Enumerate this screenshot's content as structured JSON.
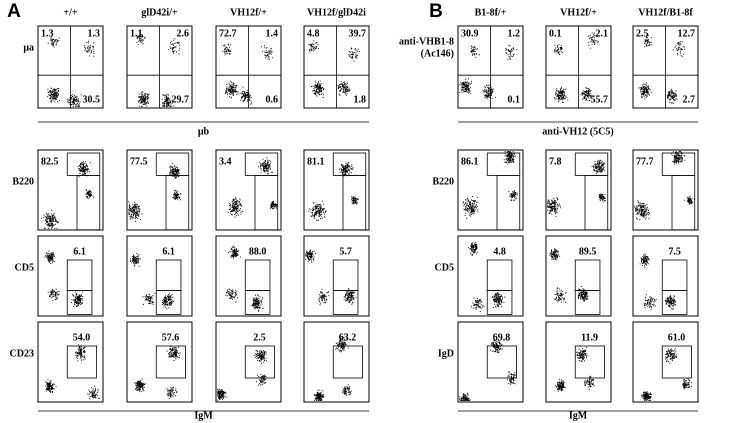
{
  "panels": [
    {
      "label": "A",
      "columns": [
        "+/+",
        "glD42i/+",
        "VH12f/+",
        "VH12f/glD42i"
      ],
      "row_labels": [
        [
          "μa"
        ],
        [
          "B220"
        ],
        [
          "CD5"
        ],
        [
          "CD23"
        ]
      ],
      "x_label_top": "μb",
      "x_label_bottom": "IgM",
      "values": [
        [
          [
            "1.3",
            "1.3",
            "30.5"
          ],
          [
            "1.1",
            "2.6",
            "29.7"
          ],
          [
            "72.7",
            "1.4",
            "0.6"
          ],
          [
            "4.8",
            "39.7",
            "1.8"
          ]
        ],
        [
          [
            "82.5"
          ],
          [
            "77.5"
          ],
          [
            "3.4"
          ],
          [
            "81.1"
          ]
        ],
        [
          [
            "6.1"
          ],
          [
            "6.1"
          ],
          [
            "88.0"
          ],
          [
            "5.7"
          ]
        ],
        [
          [
            "54.0"
          ],
          [
            "57.6"
          ],
          [
            "2.5"
          ],
          [
            "63.2"
          ]
        ]
      ]
    },
    {
      "label": "B",
      "columns": [
        "B1-8f/+",
        "VH12f/+",
        "VH12f/B1-8f"
      ],
      "row_labels": [
        [
          "anti-VHB1-8",
          "(Ac146)"
        ],
        [
          "B220"
        ],
        [
          "CD5"
        ],
        [
          "IgD"
        ]
      ],
      "x_label_top": "anti-VH12 (5C5)",
      "x_label_bottom": "IgM",
      "values": [
        [
          [
            "30.9",
            "1.2",
            "0.1"
          ],
          [
            "0.1",
            "2.1",
            "55.7"
          ],
          [
            "2.5",
            "12.7",
            "2.7"
          ]
        ],
        [
          [
            "86.1"
          ],
          [
            "7.8"
          ],
          [
            "77.7"
          ]
        ],
        [
          [
            "4.8"
          ],
          [
            "89.5"
          ],
          [
            "7.5"
          ]
        ],
        [
          [
            "69.8"
          ],
          [
            "11.9"
          ],
          [
            "61.0"
          ]
        ]
      ]
    }
  ]
}
